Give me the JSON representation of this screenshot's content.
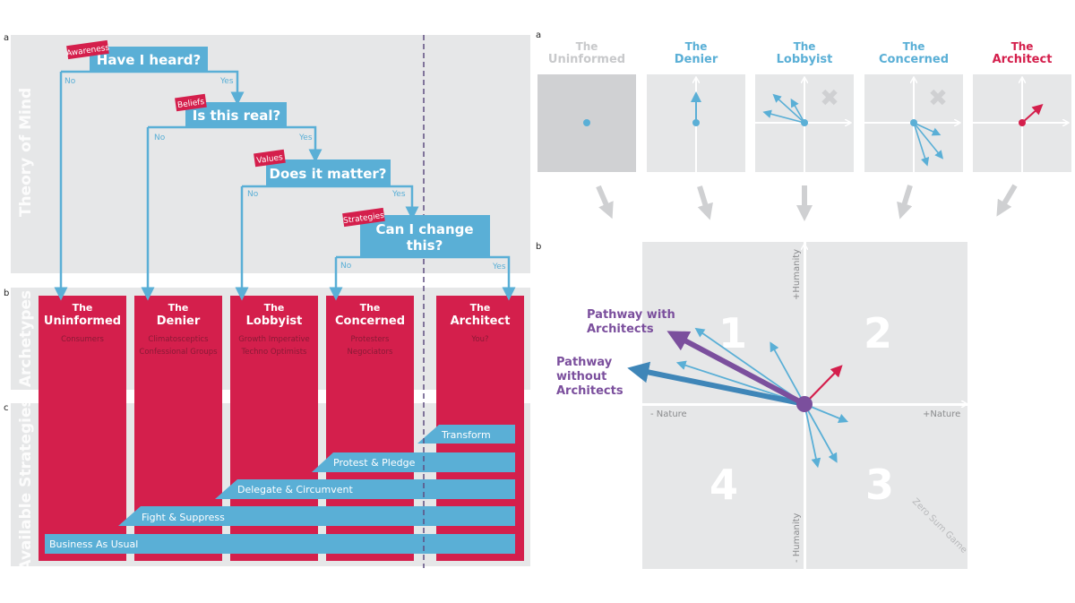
{
  "colors": {
    "blue": "#5aafd6",
    "red": "#d41f4c",
    "panel_gray": "#e6e7e8",
    "purple": "#7b4f9d",
    "dark_blue": "#3f86b8"
  },
  "left": {
    "panel_labels": {
      "a": "a",
      "b": "b",
      "c": "c"
    },
    "row_labels": {
      "theory": "Theory of Mind",
      "archetypes": "Archetypes",
      "strategies": "Available Strategies"
    },
    "questions": [
      {
        "tag": "Awareness",
        "text": "Have I heard?",
        "no": "No",
        "yes": "Yes"
      },
      {
        "tag": "Beliefs",
        "text": "Is this real?",
        "no": "No",
        "yes": "Yes"
      },
      {
        "tag": "Values",
        "text": "Does it matter?",
        "no": "No",
        "yes": "Yes"
      },
      {
        "tag": "Strategies",
        "text_line1": "Can I change",
        "text_line2": "this?",
        "no": "No",
        "yes": "Yes"
      }
    ],
    "archetypes": [
      {
        "the": "The",
        "name": "Uninformed",
        "sub": [
          "Consumers"
        ]
      },
      {
        "the": "The",
        "name": "Denier",
        "sub": [
          "Climatosceptics",
          "Confessional Groups"
        ]
      },
      {
        "the": "The",
        "name": "Lobbyist",
        "sub": [
          "Growth Imperative",
          "Techno Optimists"
        ]
      },
      {
        "the": "The",
        "name": "Concerned",
        "sub": [
          "Protesters",
          "Negociators"
        ]
      },
      {
        "the": "The",
        "name": "Architect",
        "sub": [
          "You?"
        ]
      }
    ],
    "strategies": [
      "Transform",
      "Protest & Pledge",
      "Delegate & Circumvent",
      "Fight & Suppress",
      "Business As Usual"
    ]
  },
  "right": {
    "panel_labels": {
      "a": "a",
      "b": "b"
    },
    "archetypes": [
      {
        "the": "The",
        "name": "Uninformed",
        "color": "#c8c9cb"
      },
      {
        "the": "The",
        "name": "Denier",
        "color": "#5aafd6"
      },
      {
        "the": "The",
        "name": "Lobbyist",
        "color": "#5aafd6"
      },
      {
        "the": "The",
        "name": "Concerned",
        "color": "#5aafd6"
      },
      {
        "the": "The",
        "name": "Architect",
        "color": "#d41f4c"
      }
    ],
    "axes": {
      "plus_humanity": "+Humanity",
      "minus_humanity": "- Humanity",
      "minus_nature": "- Nature",
      "plus_nature": "+Nature"
    },
    "quadrants": [
      "1",
      "2",
      "3",
      "4"
    ],
    "zero_sum": "Zero Sum Game",
    "pathway_with": [
      "Pathway with",
      "Architects"
    ],
    "pathway_without": [
      "Pathway",
      "without",
      "Architects"
    ]
  }
}
